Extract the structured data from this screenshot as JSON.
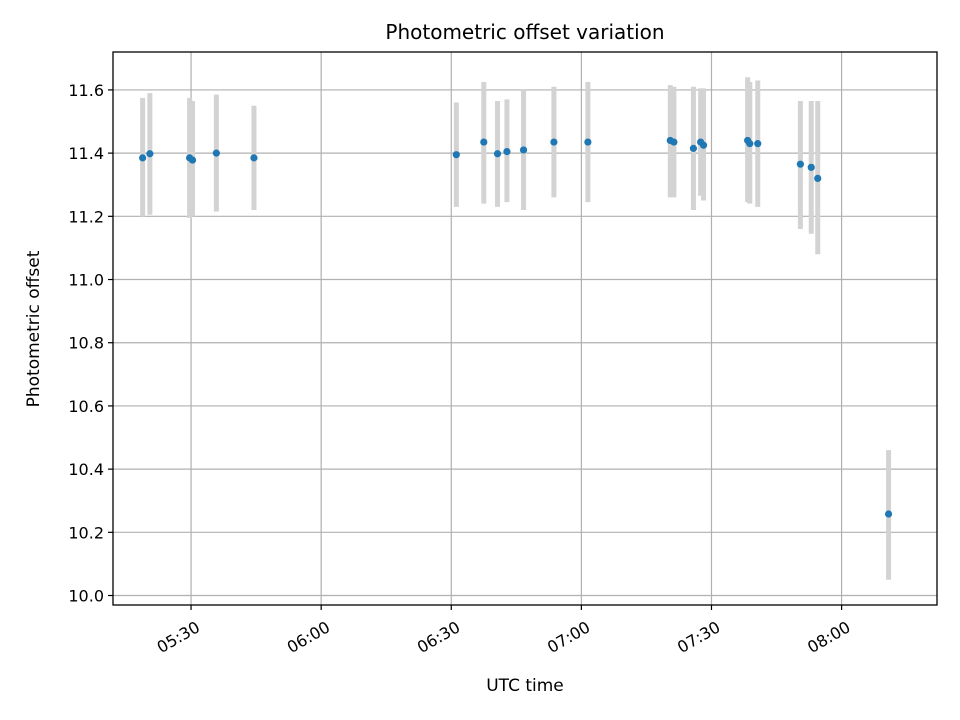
{
  "chart_data": {
    "type": "scatter",
    "title": "Photometric offset variation",
    "xlabel": "UTC time",
    "ylabel": "Photometric offset",
    "xlim": [
      "05:12",
      "08:22"
    ],
    "ylim": [
      9.97,
      11.72
    ],
    "x_ticks": [
      "05:30",
      "06:00",
      "06:30",
      "07:00",
      "07:30",
      "08:00"
    ],
    "y_ticks": [
      10.0,
      10.2,
      10.4,
      10.6,
      10.8,
      11.0,
      11.2,
      11.4,
      11.6
    ],
    "y_tick_labels": [
      "10.0",
      "10.2",
      "10.4",
      "10.6",
      "10.8",
      "11.0",
      "11.2",
      "11.4",
      "11.6"
    ],
    "grid": true,
    "colors": {
      "points": "#1f77b4",
      "error_bars": "#d3d3d3",
      "grid": "#b0b0b0"
    },
    "points": [
      {
        "x": "05:18:50",
        "y": 11.385,
        "ylow": 11.2,
        "yhigh": 11.575
      },
      {
        "x": "05:20:30",
        "y": 11.398,
        "ylow": 11.205,
        "yhigh": 11.59
      },
      {
        "x": "05:29:40",
        "y": 11.385,
        "ylow": 11.195,
        "yhigh": 11.575
      },
      {
        "x": "05:30:20",
        "y": 11.378,
        "ylow": 11.2,
        "yhigh": 11.565
      },
      {
        "x": "05:35:50",
        "y": 11.4,
        "ylow": 11.215,
        "yhigh": 11.585
      },
      {
        "x": "05:44:30",
        "y": 11.385,
        "ylow": 11.22,
        "yhigh": 11.55
      },
      {
        "x": "06:31:10",
        "y": 11.395,
        "ylow": 11.23,
        "yhigh": 11.56
      },
      {
        "x": "06:37:30",
        "y": 11.435,
        "ylow": 11.24,
        "yhigh": 11.625
      },
      {
        "x": "06:40:40",
        "y": 11.398,
        "ylow": 11.23,
        "yhigh": 11.565
      },
      {
        "x": "06:42:50",
        "y": 11.405,
        "ylow": 11.245,
        "yhigh": 11.57
      },
      {
        "x": "06:46:40",
        "y": 11.41,
        "ylow": 11.22,
        "yhigh": 11.6
      },
      {
        "x": "06:53:40",
        "y": 11.435,
        "ylow": 11.26,
        "yhigh": 11.61
      },
      {
        "x": "07:01:30",
        "y": 11.435,
        "ylow": 11.245,
        "yhigh": 11.625
      },
      {
        "x": "07:20:30",
        "y": 11.44,
        "ylow": 11.26,
        "yhigh": 11.615
      },
      {
        "x": "07:21:20",
        "y": 11.435,
        "ylow": 11.26,
        "yhigh": 11.61
      },
      {
        "x": "07:25:50",
        "y": 11.415,
        "ylow": 11.22,
        "yhigh": 11.61
      },
      {
        "x": "07:27:30",
        "y": 11.435,
        "ylow": 11.265,
        "yhigh": 11.605
      },
      {
        "x": "07:28:10",
        "y": 11.425,
        "ylow": 11.25,
        "yhigh": 11.605
      },
      {
        "x": "07:38:20",
        "y": 11.44,
        "ylow": 11.245,
        "yhigh": 11.64
      },
      {
        "x": "07:38:50",
        "y": 11.43,
        "ylow": 11.24,
        "yhigh": 11.625
      },
      {
        "x": "07:40:40",
        "y": 11.43,
        "ylow": 11.23,
        "yhigh": 11.63
      },
      {
        "x": "07:50:30",
        "y": 11.365,
        "ylow": 11.16,
        "yhigh": 11.565
      },
      {
        "x": "07:53:00",
        "y": 11.355,
        "ylow": 11.145,
        "yhigh": 11.565
      },
      {
        "x": "07:54:30",
        "y": 11.32,
        "ylow": 11.08,
        "yhigh": 11.565
      },
      {
        "x": "08:10:50",
        "y": 10.258,
        "ylow": 10.05,
        "yhigh": 10.46
      }
    ]
  }
}
